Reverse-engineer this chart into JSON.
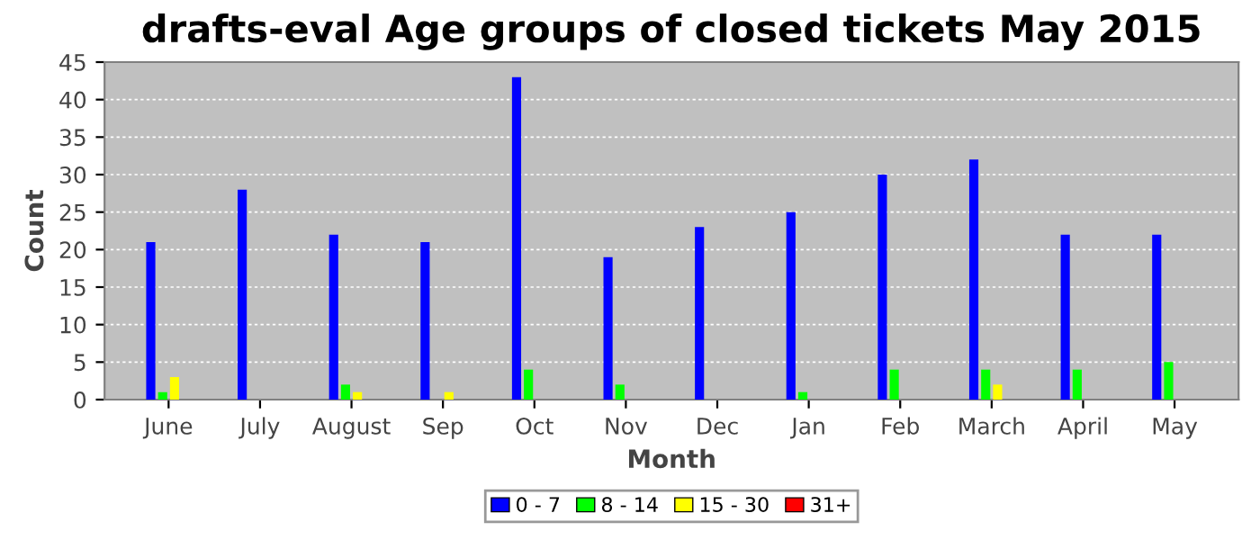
{
  "chart_data": {
    "type": "bar",
    "title": "drafts-eval Age groups of closed tickets May 2015",
    "xlabel": "Month",
    "ylabel": "Count",
    "categories": [
      "June",
      "July",
      "August",
      "Sep",
      "Oct",
      "Nov",
      "Dec",
      "Jan",
      "Feb",
      "March",
      "April",
      "May"
    ],
    "series": [
      {
        "name": "0 - 7",
        "color": "#0000ff",
        "values": [
          21,
          28,
          22,
          21,
          43,
          19,
          23,
          25,
          30,
          32,
          22,
          22
        ]
      },
      {
        "name": "8 - 14",
        "color": "#00ff00",
        "values": [
          1,
          0,
          2,
          0,
          4,
          2,
          0,
          1,
          4,
          4,
          4,
          5
        ]
      },
      {
        "name": "15 - 30",
        "color": "#ffff00",
        "values": [
          3,
          0,
          1,
          1,
          0,
          0,
          0,
          0,
          0,
          2,
          0,
          0
        ]
      },
      {
        "name": "31+",
        "color": "#ff0000",
        "values": [
          0,
          0,
          0,
          0,
          0,
          0,
          0,
          0,
          0,
          0,
          0,
          0
        ]
      }
    ],
    "ylim": [
      0,
      45
    ],
    "yticks": [
      0,
      5,
      10,
      15,
      20,
      25,
      30,
      35,
      40,
      45
    ],
    "grid": "y",
    "legend": "bottom"
  }
}
